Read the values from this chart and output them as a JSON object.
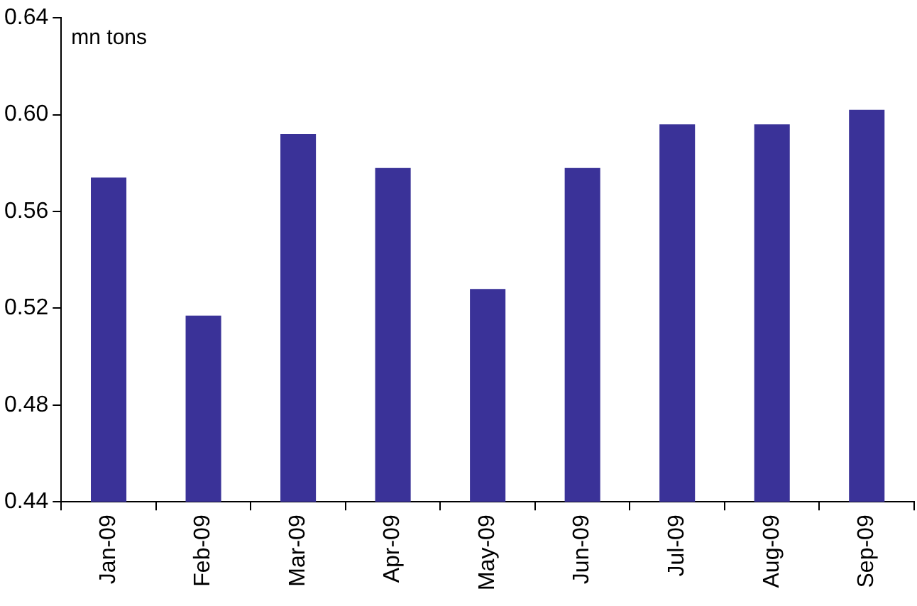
{
  "chart_data": {
    "type": "bar",
    "ylabel": "mn tons",
    "categories": [
      "Jan-09",
      "Feb-09",
      "Mar-09",
      "Apr-09",
      "May-09",
      "Jun-09",
      "Jul-09",
      "Aug-09",
      "Sep-09"
    ],
    "values": [
      0.574,
      0.517,
      0.592,
      0.578,
      0.528,
      0.578,
      0.596,
      0.596,
      0.602
    ],
    "color": "#3a3298",
    "ylim": [
      0.44,
      0.64
    ],
    "yticks": [
      0.44,
      0.48,
      0.52,
      0.56,
      {
        "value": 0.6,
        "label": "0.60"
      },
      0.64
    ],
    "grid": false,
    "legend": false
  }
}
